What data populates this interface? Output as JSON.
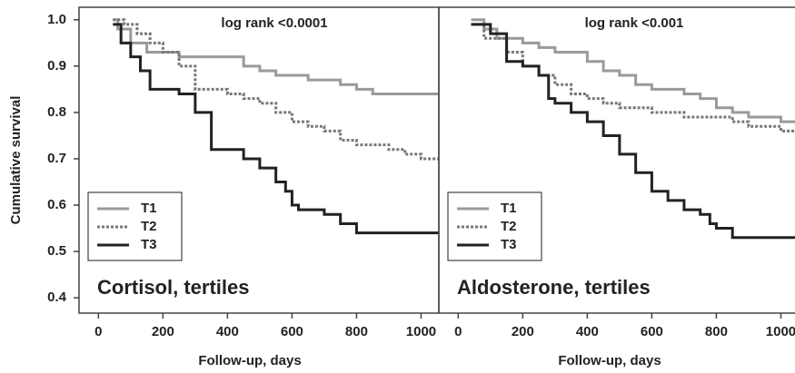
{
  "chart_data": [
    {
      "type": "step",
      "y_label": "Cumulative survival",
      "x_label": "Follow-up, days",
      "annotation": "log rank <0.0001",
      "subtitle": "Cortisol, tertiles",
      "xlim": [
        -60,
        1055
      ],
      "ylim": [
        0.367,
        1.027
      ],
      "xticks": [
        0,
        200,
        400,
        600,
        800,
        1000
      ],
      "yticks": [
        0.4,
        0.5,
        0.6,
        0.7,
        0.8,
        0.9,
        {
          "value": 1,
          "label": "1.0"
        }
      ],
      "legend": "lower left",
      "series": [
        {
          "name": "T1",
          "color": "#9a9a9a",
          "style": "solid",
          "x": [
            45,
            60,
            100,
            150,
            200,
            250,
            300,
            350,
            400,
            450,
            500,
            550,
            600,
            650,
            700,
            750,
            800,
            850,
            900,
            1000,
            1055
          ],
          "values": [
            1.0,
            0.98,
            0.95,
            0.93,
            0.93,
            0.92,
            0.92,
            0.92,
            0.92,
            0.9,
            0.89,
            0.88,
            0.88,
            0.87,
            0.87,
            0.86,
            0.85,
            0.84,
            0.84,
            0.84,
            0.84
          ]
        },
        {
          "name": "T2",
          "color": "#777777",
          "style": "dotted",
          "x": [
            45,
            80,
            120,
            160,
            200,
            250,
            300,
            350,
            400,
            450,
            500,
            550,
            600,
            650,
            700,
            750,
            800,
            850,
            900,
            950,
            1000,
            1055
          ],
          "values": [
            1.0,
            0.99,
            0.97,
            0.95,
            0.93,
            0.9,
            0.85,
            0.85,
            0.84,
            0.83,
            0.82,
            0.8,
            0.78,
            0.77,
            0.76,
            0.74,
            0.73,
            0.73,
            0.72,
            0.71,
            0.7,
            0.7
          ]
        },
        {
          "name": "T3",
          "color": "#222222",
          "style": "solid",
          "x": [
            45,
            70,
            100,
            130,
            160,
            200,
            250,
            300,
            350,
            400,
            450,
            500,
            550,
            580,
            600,
            620,
            700,
            750,
            800,
            900,
            1000,
            1055
          ],
          "values": [
            0.99,
            0.95,
            0.92,
            0.89,
            0.85,
            0.85,
            0.84,
            0.8,
            0.72,
            0.72,
            0.7,
            0.68,
            0.65,
            0.63,
            0.6,
            0.59,
            0.58,
            0.56,
            0.54,
            0.54,
            0.54,
            0.54
          ]
        }
      ]
    },
    {
      "type": "step",
      "x_label": "Follow-up, days",
      "annotation": "log rank <0.001",
      "subtitle": "Aldosterone, tertiles",
      "xlim": [
        -60,
        1055
      ],
      "ylim": [
        0.367,
        1.027
      ],
      "xticks": [
        0,
        200,
        400,
        600,
        800,
        1000
      ],
      "legend": "lower left",
      "series": [
        {
          "name": "T1",
          "color": "#9a9a9a",
          "style": "solid",
          "x": [
            40,
            80,
            120,
            200,
            250,
            300,
            400,
            450,
            500,
            550,
            600,
            650,
            700,
            750,
            800,
            850,
            900,
            1000,
            1050
          ],
          "values": [
            1.0,
            0.98,
            0.96,
            0.95,
            0.94,
            0.93,
            0.91,
            0.89,
            0.88,
            0.86,
            0.85,
            0.85,
            0.84,
            0.83,
            0.81,
            0.8,
            0.79,
            0.78,
            0.77
          ]
        },
        {
          "name": "T2",
          "color": "#777777",
          "style": "dotted",
          "x": [
            40,
            80,
            150,
            200,
            250,
            300,
            350,
            400,
            450,
            500,
            600,
            700,
            800,
            850,
            900,
            1000,
            1050
          ],
          "values": [
            0.99,
            0.96,
            0.93,
            0.9,
            0.88,
            0.86,
            0.84,
            0.83,
            0.82,
            0.81,
            0.8,
            0.79,
            0.79,
            0.78,
            0.77,
            0.76,
            0.76
          ]
        },
        {
          "name": "T3",
          "color": "#222222",
          "style": "solid",
          "x": [
            40,
            100,
            150,
            200,
            250,
            280,
            300,
            350,
            400,
            450,
            500,
            550,
            600,
            650,
            700,
            750,
            780,
            800,
            850,
            900,
            1000,
            1050
          ],
          "values": [
            0.99,
            0.97,
            0.91,
            0.9,
            0.88,
            0.83,
            0.82,
            0.8,
            0.78,
            0.75,
            0.71,
            0.67,
            0.63,
            0.61,
            0.59,
            0.58,
            0.56,
            0.55,
            0.53,
            0.53,
            0.53,
            0.53
          ]
        }
      ]
    }
  ]
}
